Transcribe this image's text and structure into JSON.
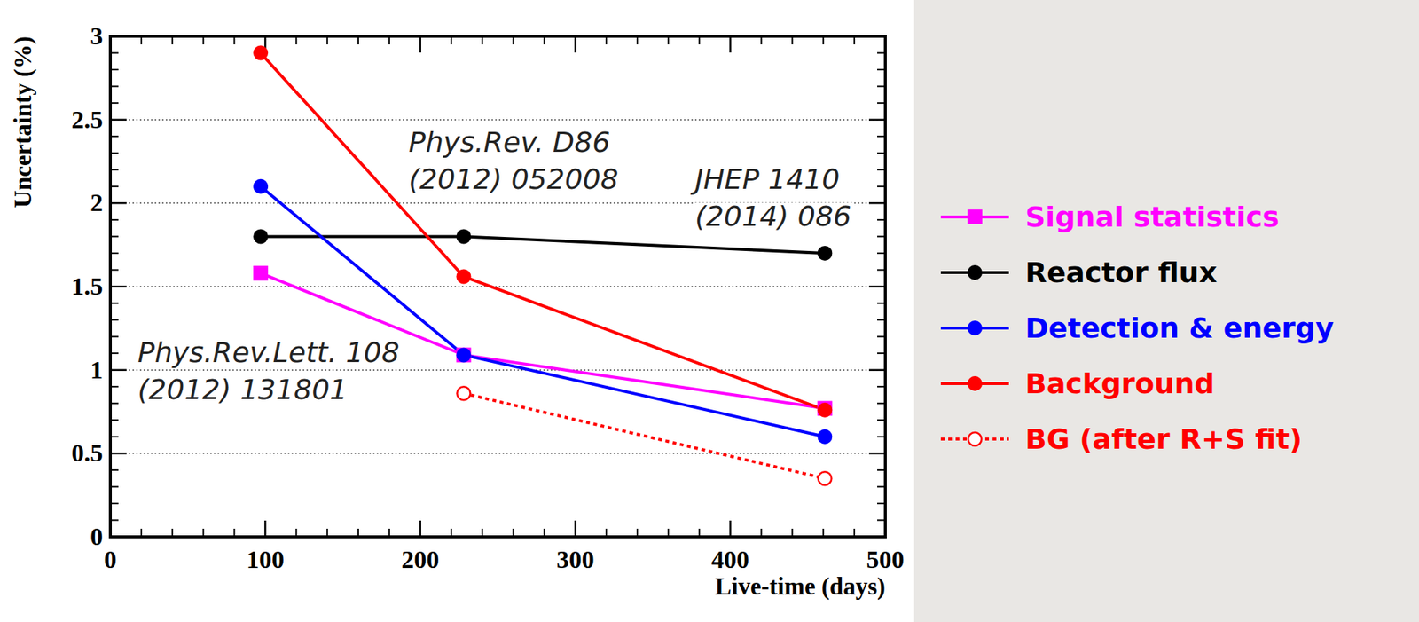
{
  "chart_data": {
    "type": "line",
    "x_label": "Live-time (days)",
    "y_label": "Uncertainty (%)",
    "x": [
      97,
      228,
      461
    ],
    "series": [
      {
        "name": "Signal statistics",
        "color": "#ff00ff",
        "marker": "square",
        "line_style": "solid",
        "values": [
          1.58,
          1.09,
          0.77
        ]
      },
      {
        "name": "Reactor flux",
        "color": "#000000",
        "marker": "circle",
        "line_style": "solid",
        "values": [
          1.8,
          1.8,
          1.7
        ]
      },
      {
        "name": "Detection & energy",
        "color": "#0000ff",
        "marker": "circle",
        "line_style": "solid",
        "values": [
          2.1,
          1.09,
          0.6
        ]
      },
      {
        "name": "Background",
        "color": "#ff0000",
        "marker": "circle",
        "line_style": "solid",
        "values": [
          2.9,
          1.56,
          0.76
        ]
      },
      {
        "name": "BG (after R+S fit)",
        "color": "#ff0000",
        "marker": "open-circle",
        "line_style": "dotted",
        "values": [
          null,
          0.86,
          0.35
        ]
      }
    ],
    "annotations": [
      [
        "Phys.Rev.Lett. 108",
        "(2012) 131801"
      ],
      [
        "Phys.Rev. D86",
        "(2012) 052008"
      ],
      [
        "JHEP 1410",
        "(2014) 086"
      ]
    ],
    "xlim": [
      0,
      500
    ],
    "ylim": [
      0,
      3
    ],
    "xticks": [
      0,
      100,
      200,
      300,
      400,
      500
    ],
    "yticks": [
      0,
      0.5,
      1,
      1.5,
      2,
      2.5,
      3
    ],
    "grid": true,
    "legend": "right"
  }
}
